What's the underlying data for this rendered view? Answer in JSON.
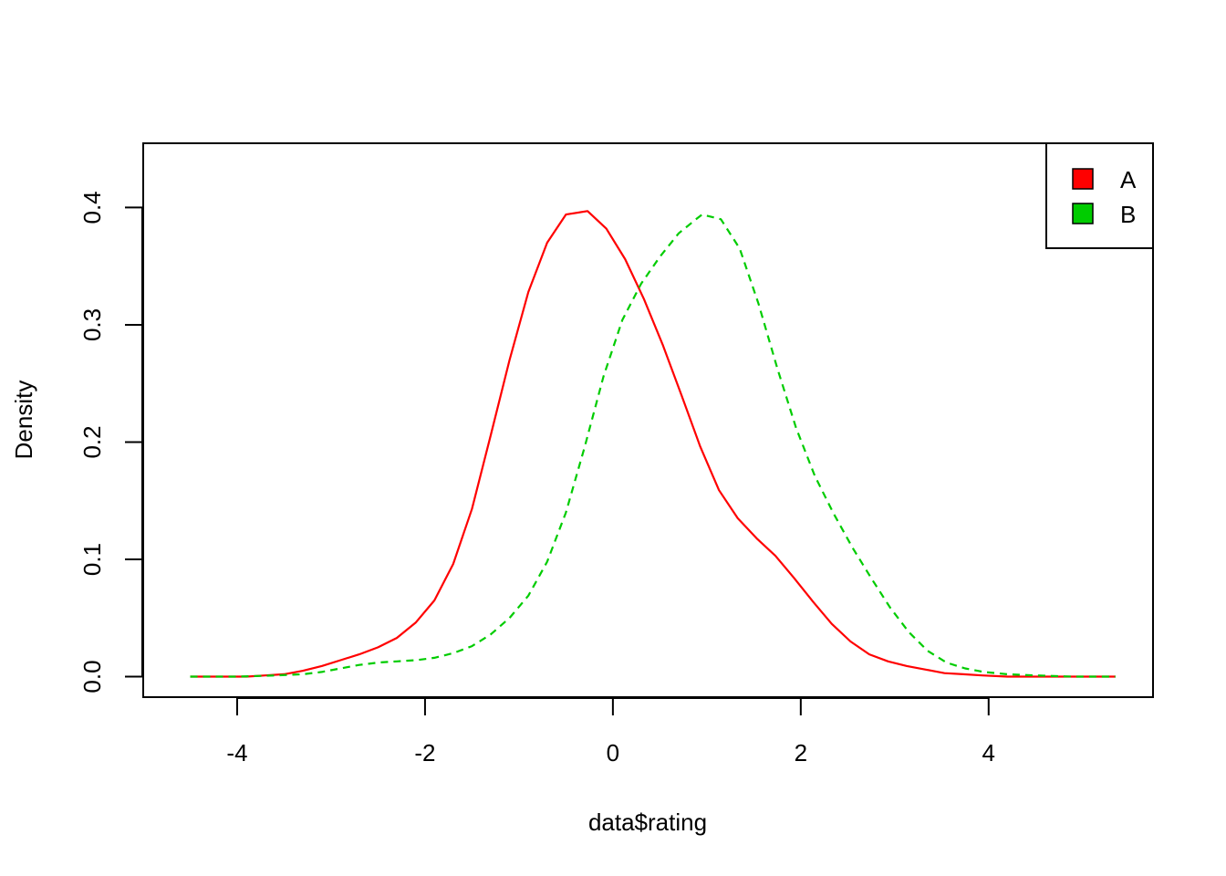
{
  "chart_data": {
    "type": "line",
    "title": "",
    "xlabel": "data$rating",
    "ylabel": "Density",
    "xlim": [
      -5.0,
      5.75
    ],
    "ylim": [
      -0.0175,
      0.4548
    ],
    "x_ticks": [
      -4,
      -2,
      0,
      2,
      4
    ],
    "x_tick_labels": [
      "-4",
      "-2",
      "0",
      "2",
      "4"
    ],
    "y_ticks": [
      0.0,
      0.1,
      0.2,
      0.3,
      0.4
    ],
    "y_tick_labels": [
      "0.0",
      "0.1",
      "0.2",
      "0.3",
      "0.4"
    ],
    "grid": false,
    "legend_position": "top-right",
    "series": [
      {
        "name": "A",
        "color": "#ff0000",
        "line_style": "solid",
        "points": [
          [
            -4.5,
            0.0
          ],
          [
            -4.3,
            0.0
          ],
          [
            -4.1,
            0.0
          ],
          [
            -3.9,
            0.0
          ],
          [
            -3.7,
            0.001
          ],
          [
            -3.5,
            0.002
          ],
          [
            -3.3,
            0.005
          ],
          [
            -3.1,
            0.009
          ],
          [
            -2.9,
            0.014
          ],
          [
            -2.7,
            0.019
          ],
          [
            -2.5,
            0.025
          ],
          [
            -2.3,
            0.033
          ],
          [
            -2.1,
            0.046
          ],
          [
            -1.9,
            0.065
          ],
          [
            -1.7,
            0.096
          ],
          [
            -1.5,
            0.143
          ],
          [
            -1.3,
            0.206
          ],
          [
            -1.1,
            0.27
          ],
          [
            -0.9,
            0.328
          ],
          [
            -0.7,
            0.37
          ],
          [
            -0.5,
            0.394
          ],
          [
            -0.27,
            0.397
          ],
          [
            -0.07,
            0.382
          ],
          [
            0.13,
            0.356
          ],
          [
            0.33,
            0.322
          ],
          [
            0.53,
            0.283
          ],
          [
            0.73,
            0.24
          ],
          [
            0.93,
            0.196
          ],
          [
            1.13,
            0.159
          ],
          [
            1.33,
            0.135
          ],
          [
            1.53,
            0.118
          ],
          [
            1.73,
            0.103
          ],
          [
            1.93,
            0.084
          ],
          [
            2.13,
            0.064
          ],
          [
            2.33,
            0.045
          ],
          [
            2.53,
            0.03
          ],
          [
            2.73,
            0.019
          ],
          [
            2.93,
            0.013
          ],
          [
            3.13,
            0.009
          ],
          [
            3.33,
            0.006
          ],
          [
            3.53,
            0.003
          ],
          [
            3.73,
            0.002
          ],
          [
            3.93,
            0.001
          ],
          [
            4.2,
            0.0
          ],
          [
            4.6,
            0.0
          ],
          [
            5.0,
            0.0
          ],
          [
            5.35,
            0.0
          ]
        ]
      },
      {
        "name": "B",
        "color": "#00cc00",
        "line_style": "dashed",
        "points": [
          [
            -4.5,
            0.0
          ],
          [
            -4.0,
            0.0
          ],
          [
            -3.6,
            0.001
          ],
          [
            -3.3,
            0.002
          ],
          [
            -3.1,
            0.004
          ],
          [
            -2.9,
            0.007
          ],
          [
            -2.7,
            0.01
          ],
          [
            -2.5,
            0.012
          ],
          [
            -2.3,
            0.013
          ],
          [
            -2.1,
            0.014
          ],
          [
            -1.9,
            0.016
          ],
          [
            -1.7,
            0.02
          ],
          [
            -1.5,
            0.026
          ],
          [
            -1.3,
            0.036
          ],
          [
            -1.1,
            0.05
          ],
          [
            -0.9,
            0.069
          ],
          [
            -0.7,
            0.098
          ],
          [
            -0.5,
            0.14
          ],
          [
            -0.3,
            0.196
          ],
          [
            -0.1,
            0.256
          ],
          [
            0.1,
            0.304
          ],
          [
            0.3,
            0.335
          ],
          [
            0.5,
            0.358
          ],
          [
            0.7,
            0.378
          ],
          [
            0.9,
            0.391
          ],
          [
            0.95,
            0.394
          ],
          [
            1.15,
            0.39
          ],
          [
            1.35,
            0.365
          ],
          [
            1.55,
            0.318
          ],
          [
            1.75,
            0.263
          ],
          [
            1.95,
            0.212
          ],
          [
            2.15,
            0.171
          ],
          [
            2.35,
            0.139
          ],
          [
            2.55,
            0.11
          ],
          [
            2.75,
            0.084
          ],
          [
            2.95,
            0.059
          ],
          [
            3.15,
            0.038
          ],
          [
            3.35,
            0.022
          ],
          [
            3.55,
            0.012
          ],
          [
            3.75,
            0.007
          ],
          [
            3.95,
            0.004
          ],
          [
            4.2,
            0.002
          ],
          [
            4.5,
            0.001
          ],
          [
            4.9,
            0.0
          ],
          [
            5.35,
            0.0
          ]
        ]
      }
    ]
  }
}
